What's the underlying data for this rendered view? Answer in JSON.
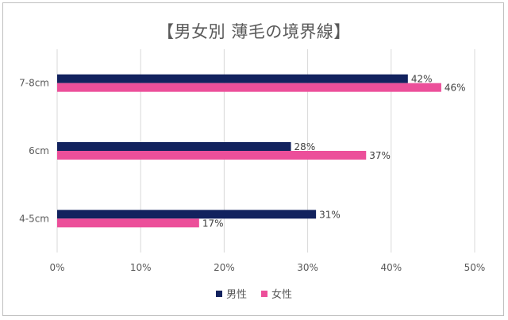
{
  "chart_data": {
    "type": "bar",
    "orientation": "horizontal",
    "title": "【男女別 薄毛の境界線】",
    "categories": [
      "7-8cm",
      "6cm",
      "4-5cm"
    ],
    "series": [
      {
        "name": "男性",
        "values": [
          42,
          28,
          31
        ],
        "labels": [
          "42%",
          "28%",
          "31%"
        ],
        "color": "#12225e"
      },
      {
        "name": "女性",
        "values": [
          46,
          37,
          17
        ],
        "labels": [
          "46%",
          "37%",
          "17%"
        ],
        "color": "#ec4f9a"
      }
    ],
    "x_ticks": [
      "0%",
      "10%",
      "20%",
      "30%",
      "40%",
      "50%"
    ],
    "xlim": [
      0,
      50
    ],
    "grid": "vertical",
    "legend": "bottom"
  }
}
